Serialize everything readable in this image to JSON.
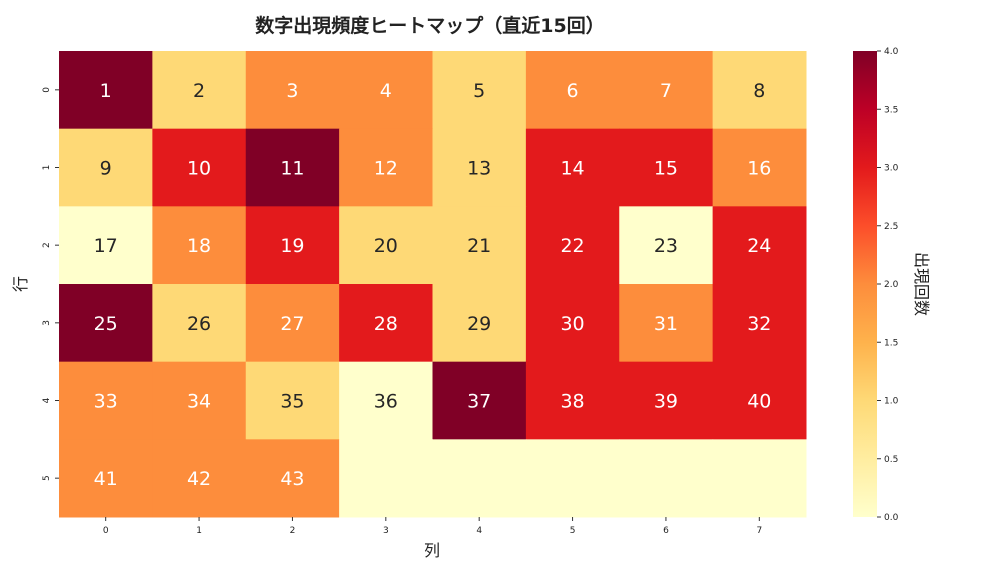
{
  "chart_data": {
    "type": "heatmap",
    "title": "数字出現頻度ヒートマップ（直近15回）",
    "xlabel": "列",
    "ylabel": "行",
    "x_ticks": [
      "0",
      "1",
      "2",
      "3",
      "4",
      "5",
      "6",
      "7"
    ],
    "y_ticks": [
      "0",
      "1",
      "2",
      "3",
      "4",
      "5"
    ],
    "values": [
      [
        4,
        1,
        2,
        2,
        1,
        2,
        2,
        1
      ],
      [
        1,
        3,
        4,
        2,
        1,
        3,
        3,
        2
      ],
      [
        0,
        2,
        3,
        1,
        1,
        3,
        0,
        3
      ],
      [
        4,
        1,
        2,
        3,
        1,
        3,
        2,
        3
      ],
      [
        2,
        2,
        1,
        0,
        4,
        3,
        3,
        3
      ],
      [
        2,
        2,
        2,
        0,
        0,
        0,
        0,
        0
      ]
    ],
    "annotations": [
      [
        "1",
        "2",
        "3",
        "4",
        "5",
        "6",
        "7",
        "8"
      ],
      [
        "9",
        "10",
        "11",
        "12",
        "13",
        "14",
        "15",
        "16"
      ],
      [
        "17",
        "18",
        "19",
        "20",
        "21",
        "22",
        "23",
        "24"
      ],
      [
        "25",
        "26",
        "27",
        "28",
        "29",
        "30",
        "31",
        "32"
      ],
      [
        "33",
        "34",
        "35",
        "36",
        "37",
        "38",
        "39",
        "40"
      ],
      [
        "41",
        "42",
        "43",
        "",
        "",
        "",
        "",
        ""
      ]
    ],
    "colormap": "YlOrRd",
    "vmin": 0,
    "vmax": 4,
    "colorbar": {
      "label": "出現回数",
      "ticks": [
        "0.0",
        "0.5",
        "1.0",
        "1.5",
        "2.0",
        "2.5",
        "3.0",
        "3.5",
        "4.0"
      ]
    }
  }
}
